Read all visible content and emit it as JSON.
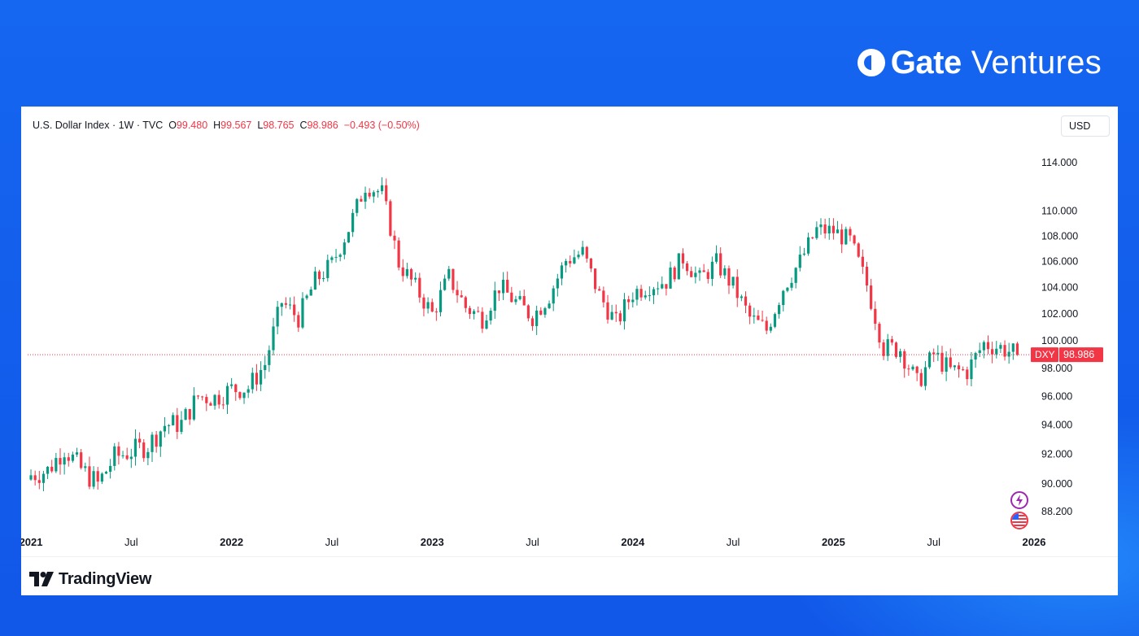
{
  "brand": {
    "name": "Gate",
    "suffix": "Ventures"
  },
  "header": {
    "symbol": "U.S. Dollar Index · 1W · TVC",
    "o_label": "O",
    "o_value": "99.480",
    "h_label": "H",
    "h_value": "99.567",
    "l_label": "L",
    "l_value": "98.765",
    "c_label": "C",
    "c_value": "98.986",
    "change": "−0.493 (−0.50%)"
  },
  "currency_button": "USD",
  "footer": {
    "logo_text": "TradingView"
  },
  "colors": {
    "up": "#089981",
    "down": "#f23645",
    "accent": "#1462ef",
    "price_line": "#f23645"
  },
  "icons": [
    "gate-logo-icon",
    "lightning-icon",
    "us-flag-icon",
    "tradingview-logo-icon"
  ],
  "chart_data": {
    "type": "candlestick",
    "title": "U.S. Dollar Index · 1W · TVC",
    "ticker_tag": "DXY",
    "last_price": "98.986",
    "y_tick_labels": [
      "114.000",
      "110.000",
      "108.000",
      "106.000",
      "104.000",
      "102.000",
      "100.000",
      "98.000",
      "96.000",
      "94.000",
      "92.000",
      "90.000",
      "88.200"
    ],
    "y_ticks": [
      114,
      110,
      108,
      106,
      104,
      102,
      100,
      98,
      96,
      94,
      92,
      90,
      88.2
    ],
    "x_tick_labels": [
      {
        "label": "2021",
        "date": "2021-01",
        "bold": true
      },
      {
        "label": "Jul",
        "date": "2021-07",
        "bold": false
      },
      {
        "label": "2022",
        "date": "2022-01",
        "bold": true
      },
      {
        "label": "Jul",
        "date": "2022-07",
        "bold": false
      },
      {
        "label": "2023",
        "date": "2023-01",
        "bold": true
      },
      {
        "label": "Jul",
        "date": "2023-07",
        "bold": false
      },
      {
        "label": "2024",
        "date": "2024-01",
        "bold": true
      },
      {
        "label": "Jul",
        "date": "2024-07",
        "bold": false
      },
      {
        "label": "2025",
        "date": "2025-01",
        "bold": true
      },
      {
        "label": "Jul",
        "date": "2025-07",
        "bold": false
      },
      {
        "label": "2026",
        "date": "2026-01",
        "bold": true
      }
    ],
    "y_scale": "log",
    "x_range": [
      "2021-01",
      "2026-01"
    ],
    "grid": false,
    "series": [
      {
        "name": "DXY weekly close",
        "points": [
          [
            "2021-01",
            90.6
          ],
          [
            "2021-02",
            90.9
          ],
          [
            "2021-03",
            92.4
          ],
          [
            "2021-04",
            91.0
          ],
          [
            "2021-05",
            90.0
          ],
          [
            "2021-06",
            91.8
          ],
          [
            "2021-07",
            92.2
          ],
          [
            "2021-08",
            92.6
          ],
          [
            "2021-09",
            94.0
          ],
          [
            "2021-10",
            94.1
          ],
          [
            "2021-11",
            96.0
          ],
          [
            "2021-12",
            95.9
          ],
          [
            "2022-01",
            96.5
          ],
          [
            "2022-02",
            96.6
          ],
          [
            "2022-03",
            98.3
          ],
          [
            "2022-04",
            102.9
          ],
          [
            "2022-05",
            101.7
          ],
          [
            "2022-06",
            104.5
          ],
          [
            "2022-07",
            105.8
          ],
          [
            "2022-08",
            108.6
          ],
          [
            "2022-09",
            112.1
          ],
          [
            "2022-10",
            111.5
          ],
          [
            "2022-11",
            105.9
          ],
          [
            "2022-12",
            104.0
          ],
          [
            "2023-01",
            102.0
          ],
          [
            "2023-02",
            104.8
          ],
          [
            "2023-03",
            102.5
          ],
          [
            "2023-04",
            101.7
          ],
          [
            "2023-05",
            104.1
          ],
          [
            "2023-06",
            102.9
          ],
          [
            "2023-07",
            101.8
          ],
          [
            "2023-08",
            103.4
          ],
          [
            "2023-09",
            106.1
          ],
          [
            "2023-10",
            106.7
          ],
          [
            "2023-11",
            103.4
          ],
          [
            "2023-12",
            101.3
          ],
          [
            "2024-01",
            103.6
          ],
          [
            "2024-02",
            104.2
          ],
          [
            "2024-03",
            104.5
          ],
          [
            "2024-04",
            106.3
          ],
          [
            "2024-05",
            104.6
          ],
          [
            "2024-06",
            105.9
          ],
          [
            "2024-07",
            104.1
          ],
          [
            "2024-08",
            101.7
          ],
          [
            "2024-09",
            100.8
          ],
          [
            "2024-10",
            104.0
          ],
          [
            "2024-11",
            106.0
          ],
          [
            "2024-12",
            108.5
          ],
          [
            "2025-01",
            108.4
          ],
          [
            "2025-02",
            107.6
          ],
          [
            "2025-03",
            104.2
          ],
          [
            "2025-04",
            99.5
          ],
          [
            "2025-05",
            99.4
          ],
          [
            "2025-06",
            96.9
          ],
          [
            "2025-07",
            99.0
          ],
          [
            "2025-08",
            97.8
          ],
          [
            "2025-09",
            97.8
          ],
          [
            "2025-10",
            99.8
          ],
          [
            "2025-11",
            99.5
          ],
          [
            "2025-12",
            98.986
          ]
        ]
      }
    ]
  }
}
